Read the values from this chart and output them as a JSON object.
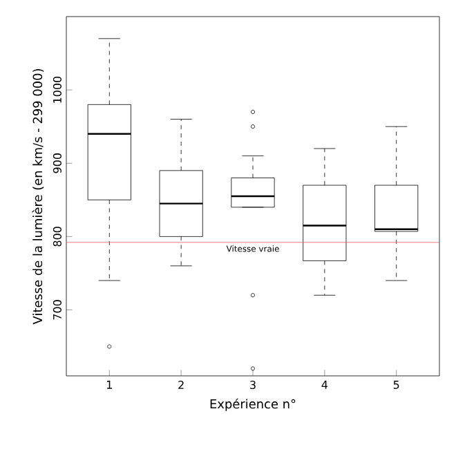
{
  "chart_data": {
    "type": "box",
    "xlabel": "Expérience n°",
    "ylabel": "Vitesse de la lumière (en km/s - 299 000)",
    "categories": [
      "1",
      "2",
      "3",
      "4",
      "5"
    ],
    "boxes": [
      {
        "low": 740,
        "q1": 850,
        "median": 940,
        "q3": 980,
        "high": 1070,
        "outliers": [
          650
        ]
      },
      {
        "low": 760,
        "q1": 800,
        "median": 845,
        "q3": 890,
        "high": 960
      },
      {
        "low": 840,
        "q1": 840,
        "median": 855,
        "q3": 880,
        "high": 910,
        "outliers": [
          620,
          720,
          950,
          970
        ]
      },
      {
        "low": 720,
        "q1": 767,
        "median": 815,
        "q3": 870,
        "high": 920
      },
      {
        "low": 740,
        "q1": 807,
        "median": 810,
        "q3": 870,
        "high": 950
      }
    ],
    "color": "#000000",
    "ylim": [
      610,
      1100
    ],
    "yticks": [
      700,
      800,
      900,
      1000
    ],
    "ref_lines": [
      {
        "axis": "y",
        "value": 792,
        "label": "Vitesse vraie",
        "color": "#e06060"
      }
    ]
  }
}
